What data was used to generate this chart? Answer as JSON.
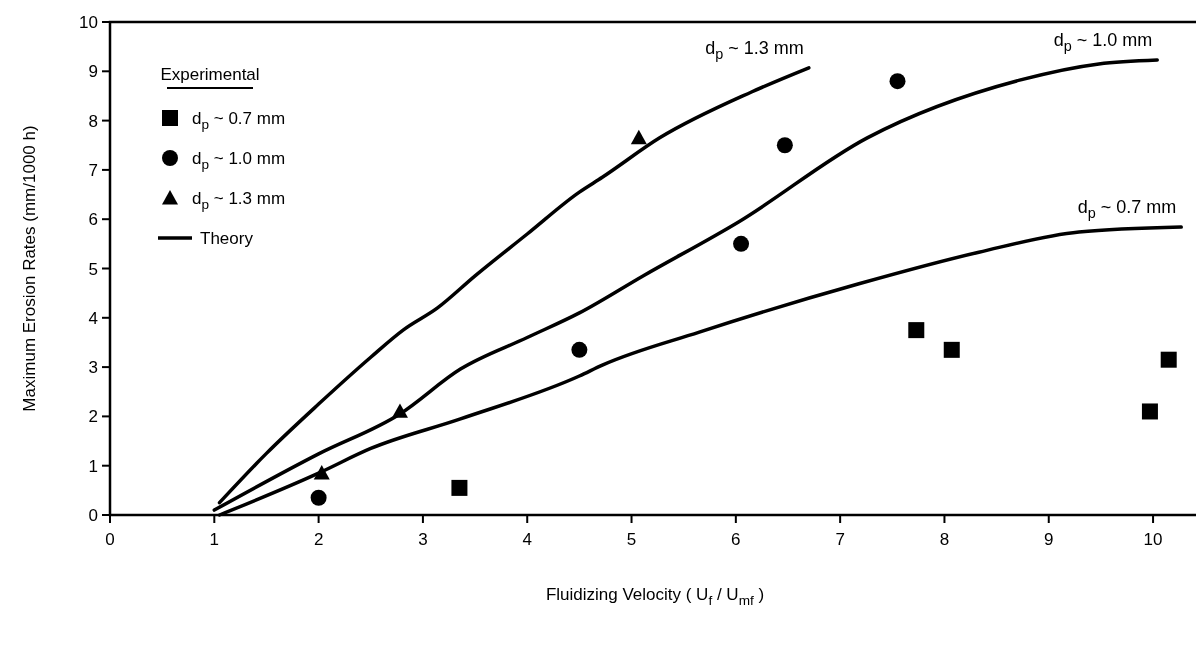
{
  "chart_data": {
    "type": "scatter",
    "xlabel": "Fluidizing Velocity ( U$_{f}$ / U$_{mf}$ )",
    "ylabel": "Maximum Erosion Rates (mm/1000 h)",
    "legend_title": "Experimental",
    "legend": "top left",
    "xlim": [
      0,
      10.45
    ],
    "ylim": [
      0,
      10
    ],
    "xticks": [
      0,
      1,
      2,
      3,
      4,
      5,
      6,
      7,
      8,
      9,
      10
    ],
    "yticks": [
      0,
      1,
      2,
      3,
      4,
      5,
      6,
      7,
      8,
      9,
      10
    ],
    "grid": false,
    "series": [
      {
        "name": "d$_{p}$ ~ 0.7 mm",
        "color": "#000000",
        "marker": "square",
        "x": [
          3.35,
          7.73,
          8.07,
          9.97,
          10.15
        ],
        "values": [
          0.55,
          3.75,
          3.35,
          2.1,
          3.15
        ]
      },
      {
        "name": "d$_{p}$ ~ 1.0 mm",
        "color": "#000000",
        "marker": "circle",
        "x": [
          2.0,
          4.5,
          6.05,
          6.47,
          7.55
        ],
        "values": [
          0.35,
          3.35,
          5.5,
          7.5,
          8.8
        ]
      },
      {
        "name": "d$_{p}$ ~ 1.3 mm",
        "color": "#000000",
        "marker": "triangle",
        "x": [
          2.03,
          2.78,
          5.07
        ],
        "values": [
          0.85,
          2.1,
          7.65
        ]
      },
      {
        "name": "Theory",
        "type": "line",
        "color": "#000000",
        "marker": "none",
        "line_style": "solid",
        "x": [
          1.05,
          1.5,
          2,
          2.5,
          2.81,
          3.14,
          3.5,
          4,
          4.5,
          4.72,
          5.27,
          6.15,
          6.7
        ],
        "values": [
          0.25,
          1.25,
          2.25,
          3.2,
          3.75,
          4.2,
          4.85,
          5.7,
          6.55,
          6.85,
          7.65,
          8.58,
          9.07
        ]
      },
      {
        "type": "line",
        "color": "#000000",
        "marker": "none",
        "line_style": "solid",
        "x": [
          1.0,
          2,
          2.78,
          3.36,
          4,
          4.5,
          5.11,
          6.03,
          7.26,
          8.72,
          9.48,
          10.04
        ],
        "values": [
          0.1,
          1.24,
          2.05,
          2.96,
          3.6,
          4.1,
          4.85,
          5.95,
          7.65,
          8.82,
          9.15,
          9.23
        ]
      },
      {
        "type": "line",
        "color": "#000000",
        "marker": "none",
        "line_style": "solid",
        "x": [
          1.05,
          2,
          2.5,
          3.36,
          4.5,
          4.72,
          5.65,
          7.18,
          8.33,
          9.29,
          10.27
        ],
        "values": [
          0.0,
          0.85,
          1.35,
          1.95,
          2.82,
          3.04,
          3.71,
          4.69,
          5.33,
          5.74,
          5.84
        ]
      }
    ],
    "annotations": [
      {
        "text": "d$_{p}$ ~ 1.3 mm",
        "x": 6.7,
        "y": 9.07
      },
      {
        "text": "d$_{p}$ ~ 1.0 mm",
        "x": 10.04,
        "y": 9.23
      },
      {
        "text": "d$_{p}$ ~ 0.7 mm",
        "x": 10.27,
        "y": 5.84
      }
    ]
  }
}
